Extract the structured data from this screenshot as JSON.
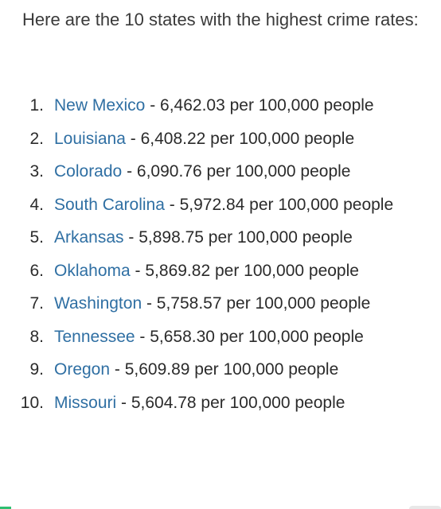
{
  "intro": "Here are the 10 states with the highest crime rates:",
  "items": [
    {
      "num": "1.",
      "state": "New Mexico",
      "detail": " - 6,462.03 per 100,000 people"
    },
    {
      "num": "2.",
      "state": "Louisiana",
      "detail": " - 6,408.22 per 100,000 people"
    },
    {
      "num": "3.",
      "state": "Colorado",
      "detail": " - 6,090.76 per 100,000 people"
    },
    {
      "num": "4.",
      "state": "South Carolina",
      "detail": " - 5,972.84 per 100,000 people"
    },
    {
      "num": "5.",
      "state": "Arkansas",
      "detail": " - 5,898.75 per 100,000 people"
    },
    {
      "num": "6.",
      "state": "Oklahoma",
      "detail": " - 5,869.82 per 100,000 people"
    },
    {
      "num": "7.",
      "state": "Washington",
      "detail": " - 5,758.57 per 100,000 people"
    },
    {
      "num": "8.",
      "state": "Tennessee",
      "detail": " - 5,658.30 per 100,000 people"
    },
    {
      "num": "9.",
      "state": "Oregon",
      "detail": " - 5,609.89 per 100,000 people"
    },
    {
      "num": "10.",
      "state": "Missouri",
      "detail": " - 5,604.78 per 100,000 people"
    }
  ],
  "colors": {
    "link": "#2f6fa3",
    "text": "#2b2b2b"
  }
}
